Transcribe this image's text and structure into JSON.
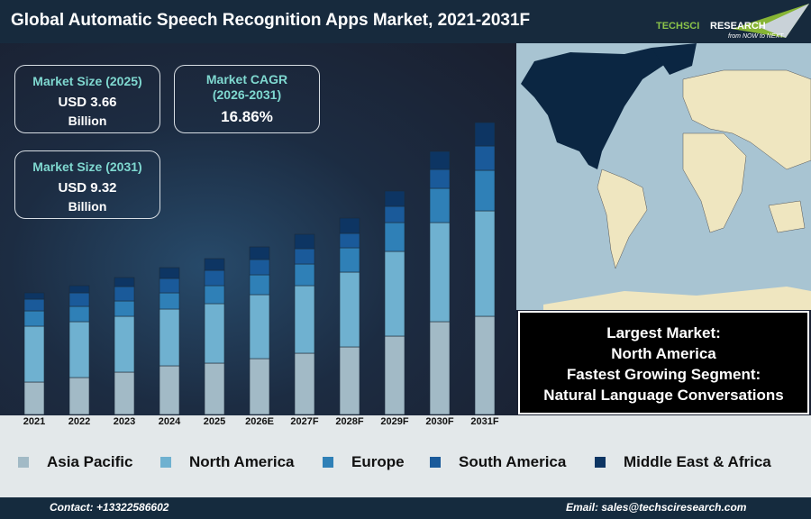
{
  "header": {
    "title": "Global Automatic Speech Recognition Apps Market, 2021-2031F",
    "logo_text": "TechSci Research",
    "logo_tagline": "from NOW to NEXT"
  },
  "cards": [
    {
      "label": "Market Size (2025)",
      "value": "USD 3.66",
      "unit": "Billion"
    },
    {
      "label": "Market CAGR (2026-2031)",
      "value": "16.86%"
    },
    {
      "label": "Market Size (2031)",
      "value": "USD 9.32",
      "unit": "Billion"
    }
  ],
  "callout": {
    "line1": "Largest Market:",
    "line2": "North America",
    "line3": "Fastest Growing Segment:",
    "line4": "Natural Language Conversations"
  },
  "chart_data": {
    "type": "bar",
    "stacked": true,
    "title": "",
    "xlabel": "",
    "ylabel": "",
    "grid": false,
    "legend": "bottom",
    "categories": [
      "2021",
      "2022",
      "2023",
      "2024",
      "2025",
      "2026E",
      "2027F",
      "2028F",
      "2029F",
      "2030F",
      "2031F"
    ],
    "series": [
      {
        "name": "Asia Pacific",
        "color": "#a2bac6",
        "values": [
          36,
          41,
          47,
          54,
          57,
          62,
          68,
          75,
          87,
          103,
          109
        ]
      },
      {
        "name": "North America",
        "color": "#6fb1d0",
        "values": [
          62,
          62,
          62,
          63,
          66,
          71,
          75,
          83,
          94,
          110,
          117
        ]
      },
      {
        "name": "Europe",
        "color": "#2f80b7",
        "values": [
          17,
          17,
          17,
          18,
          20,
          22,
          24,
          27,
          32,
          38,
          45
        ]
      },
      {
        "name": "South America",
        "color": "#1a5a9a",
        "values": [
          13,
          15,
          16,
          16,
          17,
          17,
          17,
          16,
          18,
          21,
          27
        ]
      },
      {
        "name": "Middle East & Africa",
        "color": "#0d3563",
        "values": [
          7,
          8,
          10,
          12,
          13,
          14,
          16,
          17,
          17,
          20,
          26
        ]
      }
    ]
  },
  "footer": {
    "contact": "Contact: +13322586602",
    "email": "Email: sales@techsciresearch.com"
  }
}
